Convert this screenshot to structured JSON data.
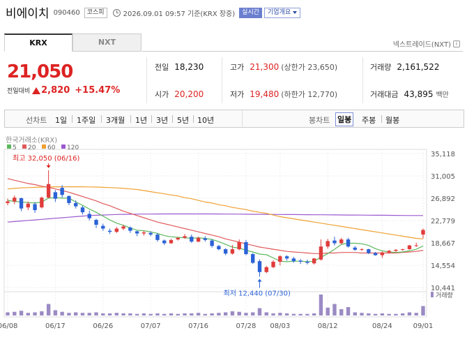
{
  "header": {
    "stock_name": "비에이치",
    "stock_code": "090460",
    "market": "코스피",
    "timestamp": "2026.09.01 09:57  기준(KRX 장중)",
    "realtime_label": "실시간",
    "company_label": "기업개요"
  },
  "tabs": [
    {
      "label": "KRX",
      "active": true
    },
    {
      "label": "NXT",
      "active": false
    }
  ],
  "nextrade_label": "넥스트레이드(NXT)",
  "quote": {
    "price": "21,050",
    "change_label": "전일대비",
    "change_value": "2,820",
    "change_rate": "+15.47%"
  },
  "stats": {
    "prev_close": {
      "label": "전일",
      "value": "18,230"
    },
    "open": {
      "label": "시가",
      "value": "20,200"
    },
    "high": {
      "label": "고가",
      "value": "21,300",
      "sub": "(상한가 23,650)"
    },
    "low": {
      "label": "저가",
      "value": "19,480",
      "sub": "(하한가 12,770)"
    },
    "volume": {
      "label": "거래량",
      "value": "2,161,522"
    },
    "amount": {
      "label": "거래대금",
      "value": "43,895",
      "unit": "백만"
    }
  },
  "toolbar": {
    "line_label": "선차트",
    "periods": [
      "1일",
      "1주일",
      "3개월",
      "1년",
      "3년",
      "5년",
      "10년"
    ],
    "candle_label": "봉차트",
    "candle_types": [
      "일봉",
      "주봉",
      "월봉"
    ],
    "active_candle": "일봉"
  },
  "chart_data": {
    "type": "candlestick",
    "source_label": "한국거래소(KRX)",
    "ma_legend": [
      {
        "name": "5",
        "color": "#5cb85c"
      },
      {
        "name": "20",
        "color": "#e05a5a"
      },
      {
        "name": "60",
        "color": "#f0a030"
      },
      {
        "name": "120",
        "color": "#9b59d0"
      }
    ],
    "y_ticks": [
      "35,118",
      "31,005",
      "26,892",
      "22,779",
      "18,667",
      "14,554",
      "10,441"
    ],
    "y_tick_values": [
      35118,
      31005,
      26892,
      22779,
      18667,
      14554,
      10441
    ],
    "x_ticks": [
      "06/08",
      "06/17",
      "06/26",
      "07/07",
      "07/16",
      "07/28",
      "08/03",
      "08/12",
      "08/24",
      "09/01"
    ],
    "x_tick_index": [
      0,
      7,
      14,
      21,
      28,
      35,
      40,
      47,
      55,
      61
    ],
    "annotations": {
      "high_label": "최고 32,050 (06/16)",
      "high_value": 32050,
      "high_index": 6,
      "low_label": "최저 12,440 (07/30)",
      "low_value": 12440,
      "low_index": 37
    },
    "volume_label": "거래량",
    "up_color": "#e03c3c",
    "down_color": "#2b62d6",
    "candles": [
      [
        26000,
        26800,
        25600,
        26300
      ],
      [
        26300,
        27400,
        25800,
        27000
      ],
      [
        26900,
        27000,
        24500,
        25000
      ],
      [
        25200,
        26300,
        24700,
        25900
      ],
      [
        25800,
        26200,
        24200,
        24700
      ],
      [
        25200,
        27200,
        25000,
        27000
      ],
      [
        27000,
        32050,
        26900,
        29500
      ],
      [
        28000,
        28400,
        26200,
        26800
      ],
      [
        28800,
        29300,
        27000,
        27500
      ],
      [
        27300,
        27400,
        25600,
        26000
      ],
      [
        26000,
        26500,
        25000,
        25400
      ],
      [
        25200,
        25500,
        23900,
        24300
      ],
      [
        24000,
        24600,
        22800,
        23200
      ],
      [
        22900,
        23100,
        21400,
        22000
      ],
      [
        21800,
        22200,
        20900,
        21300
      ],
      [
        20900,
        21300,
        20300,
        20700
      ],
      [
        20700,
        21600,
        20500,
        21300
      ],
      [
        21300,
        22000,
        21000,
        21700
      ],
      [
        21500,
        21700,
        20500,
        20900
      ],
      [
        20800,
        20900,
        19900,
        20400
      ],
      [
        20400,
        20900,
        20000,
        20600
      ],
      [
        20500,
        20800,
        19900,
        20200
      ],
      [
        20200,
        20500,
        18900,
        19200
      ],
      [
        19100,
        19300,
        18300,
        18600
      ],
      [
        18600,
        19400,
        18500,
        19200
      ],
      [
        19300,
        19700,
        19100,
        19600
      ],
      [
        19600,
        20300,
        19400,
        19900
      ],
      [
        19800,
        20200,
        18700,
        18900
      ],
      [
        18900,
        19800,
        18800,
        19600
      ],
      [
        19500,
        19900,
        18900,
        19200
      ],
      [
        19100,
        19400,
        17800,
        18100
      ],
      [
        18100,
        18300,
        17300,
        17500
      ],
      [
        17500,
        17700,
        16400,
        16700
      ],
      [
        16700,
        18300,
        16500,
        17500
      ],
      [
        17500,
        19300,
        17300,
        18800
      ],
      [
        18800,
        19200,
        16400,
        16600
      ],
      [
        16600,
        16800,
        14800,
        15000
      ],
      [
        15300,
        15600,
        12440,
        13300
      ],
      [
        13300,
        14400,
        13100,
        14200
      ],
      [
        14200,
        15500,
        14000,
        15200
      ],
      [
        15200,
        16400,
        14500,
        16200
      ],
      [
        16200,
        16400,
        15400,
        15800
      ],
      [
        15800,
        16100,
        15000,
        15300
      ],
      [
        15400,
        15700,
        14800,
        15200
      ],
      [
        15200,
        15600,
        14700,
        15000
      ],
      [
        14900,
        15900,
        14700,
        15800
      ],
      [
        15600,
        19300,
        15400,
        18000
      ],
      [
        18000,
        19400,
        17600,
        19000
      ],
      [
        19100,
        19800,
        18200,
        18600
      ],
      [
        18600,
        19600,
        18400,
        19300
      ],
      [
        19300,
        19600,
        17800,
        18000
      ],
      [
        17800,
        18100,
        17200,
        17400
      ],
      [
        17400,
        17700,
        17200,
        17500
      ],
      [
        17500,
        17600,
        16600,
        16800
      ],
      [
        16800,
        17000,
        16300,
        16400
      ],
      [
        16400,
        17100,
        15900,
        16900
      ],
      [
        16900,
        17400,
        16700,
        17200
      ],
      [
        17200,
        17500,
        17000,
        17400
      ],
      [
        17400,
        17600,
        17200,
        17500
      ],
      [
        17500,
        18300,
        17400,
        18200
      ],
      [
        18200,
        18700,
        17900,
        18230
      ],
      [
        20200,
        21300,
        19480,
        21050
      ]
    ],
    "volumes": [
      6,
      7,
      9,
      5,
      6,
      8,
      22,
      10,
      7,
      5,
      6,
      5,
      5,
      6,
      4,
      4,
      5,
      4,
      4,
      3,
      4,
      3,
      4,
      3,
      4,
      3,
      4,
      4,
      5,
      3,
      4,
      5,
      6,
      8,
      7,
      5,
      6,
      14,
      6,
      4,
      5,
      4,
      3,
      3,
      3,
      4,
      40,
      15,
      22,
      12,
      16,
      6,
      5,
      4,
      3,
      4,
      3,
      3,
      4,
      6,
      5,
      18
    ],
    "ma5": [
      26500,
      26300,
      26200,
      26100,
      26000,
      26200,
      26900,
      27000,
      26900,
      26900,
      26200,
      25600,
      24900,
      24300,
      23600,
      22900,
      22300,
      21900,
      21400,
      21000,
      20900,
      20700,
      20400,
      20000,
      19800,
      19700,
      19600,
      19500,
      19600,
      19500,
      19300,
      18900,
      18400,
      17900,
      17700,
      17300,
      17000,
      16600,
      16500,
      15900,
      15300,
      15200,
      15300,
      15300,
      15200,
      15300,
      16000,
      16700,
      17500,
      18400,
      18600,
      18600,
      18500,
      18200,
      17600,
      17200,
      17000,
      16900,
      17000,
      17200,
      17500,
      18100
    ],
    "ma20": [
      30500,
      30200,
      29900,
      29600,
      29400,
      29100,
      28900,
      28600,
      28300,
      28000,
      27600,
      27200,
      26800,
      26400,
      25900,
      25500,
      25000,
      24500,
      24100,
      23700,
      23300,
      22900,
      22500,
      22200,
      21900,
      21600,
      21300,
      21000,
      20700,
      20400,
      20100,
      19800,
      19400,
      19100,
      18800,
      18500,
      18200,
      17900,
      17700,
      17500,
      17300,
      17100,
      17000,
      16900,
      16800,
      16700,
      16700,
      16800,
      16800,
      16900,
      16900,
      16900,
      16800,
      16800,
      16800,
      16800,
      16800,
      16800,
      16900,
      17000,
      17100,
      17300
    ],
    "ma60": [
      28600,
      28700,
      28800,
      28850,
      28900,
      28950,
      28980,
      29000,
      29000,
      29000,
      29000,
      29000,
      28980,
      28950,
      28900,
      28850,
      28800,
      28700,
      28600,
      28500,
      28300,
      28100,
      27900,
      27700,
      27500,
      27300,
      27000,
      26800,
      26500,
      26200,
      26000,
      25700,
      25500,
      25200,
      25000,
      24800,
      24500,
      24300,
      24100,
      23800,
      23500,
      23300,
      23100,
      22900,
      22700,
      22500,
      22300,
      22100,
      21900,
      21700,
      21500,
      21300,
      21100,
      20900,
      20700,
      20500,
      20300,
      20100,
      19900,
      19700,
      19500,
      19400
    ],
    "ma120": [
      22500,
      22600,
      22700,
      22800,
      22900,
      23000,
      23100,
      23200,
      23300,
      23400,
      23500,
      23600,
      23700,
      23750,
      23800,
      23850,
      23900,
      23920,
      23940,
      23960,
      23970,
      23980,
      23990,
      24000,
      24000,
      24000,
      24000,
      24000,
      24000,
      24000,
      24000,
      23990,
      23980,
      23970,
      23960,
      23950,
      23940,
      23930,
      23920,
      23910,
      23900,
      23890,
      23880,
      23870,
      23860,
      23850,
      23840,
      23830,
      23820,
      23810,
      23800,
      23790,
      23780,
      23770,
      23760,
      23750,
      23740,
      23730,
      23720,
      23710,
      23700,
      23700
    ]
  }
}
